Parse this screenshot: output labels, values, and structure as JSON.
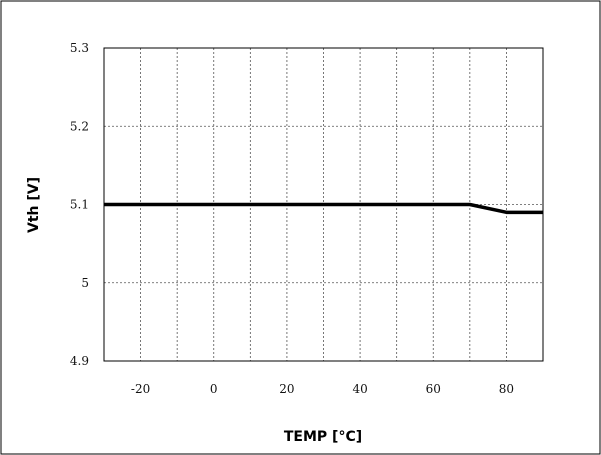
{
  "chart_data": {
    "type": "line",
    "title": "",
    "xlabel": "TEMP [°C]",
    "ylabel": "Vth [V]",
    "xlim": [
      -30,
      90
    ],
    "ylim": [
      4.9,
      5.3
    ],
    "x_gridlines": [
      -30,
      -20,
      -10,
      0,
      10,
      20,
      30,
      40,
      50,
      60,
      70,
      80,
      90
    ],
    "y_gridlines": [
      4.9,
      5.0,
      5.1,
      5.2,
      5.3
    ],
    "x_ticks": [
      {
        "value": -20,
        "label": "-20"
      },
      {
        "value": 0,
        "label": "0"
      },
      {
        "value": 20,
        "label": "20"
      },
      {
        "value": 40,
        "label": "40"
      },
      {
        "value": 60,
        "label": "60"
      },
      {
        "value": 80,
        "label": "80"
      }
    ],
    "y_ticks": [
      {
        "value": 4.9,
        "label": "4.9"
      },
      {
        "value": 5.0,
        "label": "5"
      },
      {
        "value": 5.1,
        "label": "5.1"
      },
      {
        "value": 5.2,
        "label": "5.2"
      },
      {
        "value": 5.3,
        "label": "5.3"
      }
    ],
    "grid": true,
    "legend": "none",
    "series": [
      {
        "color": "#000000",
        "points": [
          {
            "x": -30,
            "y": 5.1
          },
          {
            "x": 70,
            "y": 5.1
          },
          {
            "x": 80,
            "y": 5.09
          },
          {
            "x": 90,
            "y": 5.09
          }
        ]
      }
    ]
  }
}
